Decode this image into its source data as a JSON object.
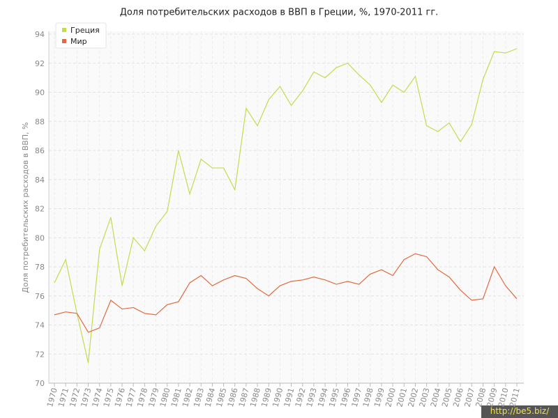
{
  "chart_data": {
    "type": "line",
    "title": "Доля потребительских расходов в ВВП в Греции, %, 1970-2011 гг.",
    "y_label": "Доля потребительских расходов в ВВП, %",
    "categories": [
      "1970",
      "1971",
      "1972",
      "1973",
      "1974",
      "1975",
      "1976",
      "1977",
      "1978",
      "1979",
      "1980",
      "1981",
      "1982",
      "1983",
      "1984",
      "1985",
      "1986",
      "1987",
      "1988",
      "1989",
      "1990",
      "1991",
      "1992",
      "1993",
      "1994",
      "1995",
      "1996",
      "1997",
      "1998",
      "1999",
      "2000",
      "2001",
      "2002",
      "2003",
      "2004",
      "2005",
      "2006",
      "2007",
      "2008",
      "2009",
      "2010",
      "2011"
    ],
    "series": [
      {
        "name": "Греция",
        "color": "#c2dc4e",
        "values": [
          76.9,
          78.5,
          74.8,
          71.4,
          79.2,
          81.4,
          76.7,
          80.0,
          79.1,
          80.8,
          81.8,
          86.0,
          83.0,
          85.4,
          84.8,
          84.8,
          83.3,
          88.9,
          87.7,
          89.5,
          90.4,
          89.1,
          90.1,
          91.4,
          91.0,
          91.7,
          92.0,
          91.2,
          90.5,
          89.3,
          90.5,
          90.0,
          91.1,
          87.7,
          87.3,
          87.9,
          86.6,
          87.8,
          90.9,
          92.8,
          92.7,
          93.0
        ]
      },
      {
        "name": "Мир",
        "color": "#e2693f",
        "values": [
          74.7,
          74.9,
          74.8,
          73.5,
          73.8,
          75.7,
          75.1,
          75.2,
          74.8,
          74.7,
          75.4,
          75.6,
          76.9,
          77.4,
          76.7,
          77.1,
          77.4,
          77.2,
          76.5,
          76.0,
          76.7,
          77.0,
          77.1,
          77.3,
          77.1,
          76.8,
          77.0,
          76.8,
          77.5,
          77.8,
          77.4,
          78.5,
          78.9,
          78.7,
          77.8,
          77.3,
          76.4,
          75.7,
          75.8,
          78.0,
          76.7,
          75.8
        ]
      }
    ],
    "ylim": [
      70,
      94
    ],
    "yticks": [
      70,
      72,
      74,
      76,
      78,
      80,
      82,
      84,
      86,
      88,
      90,
      92,
      94
    ],
    "grid": true,
    "legend": "top-left"
  },
  "watermark": "http://be5.biz/"
}
